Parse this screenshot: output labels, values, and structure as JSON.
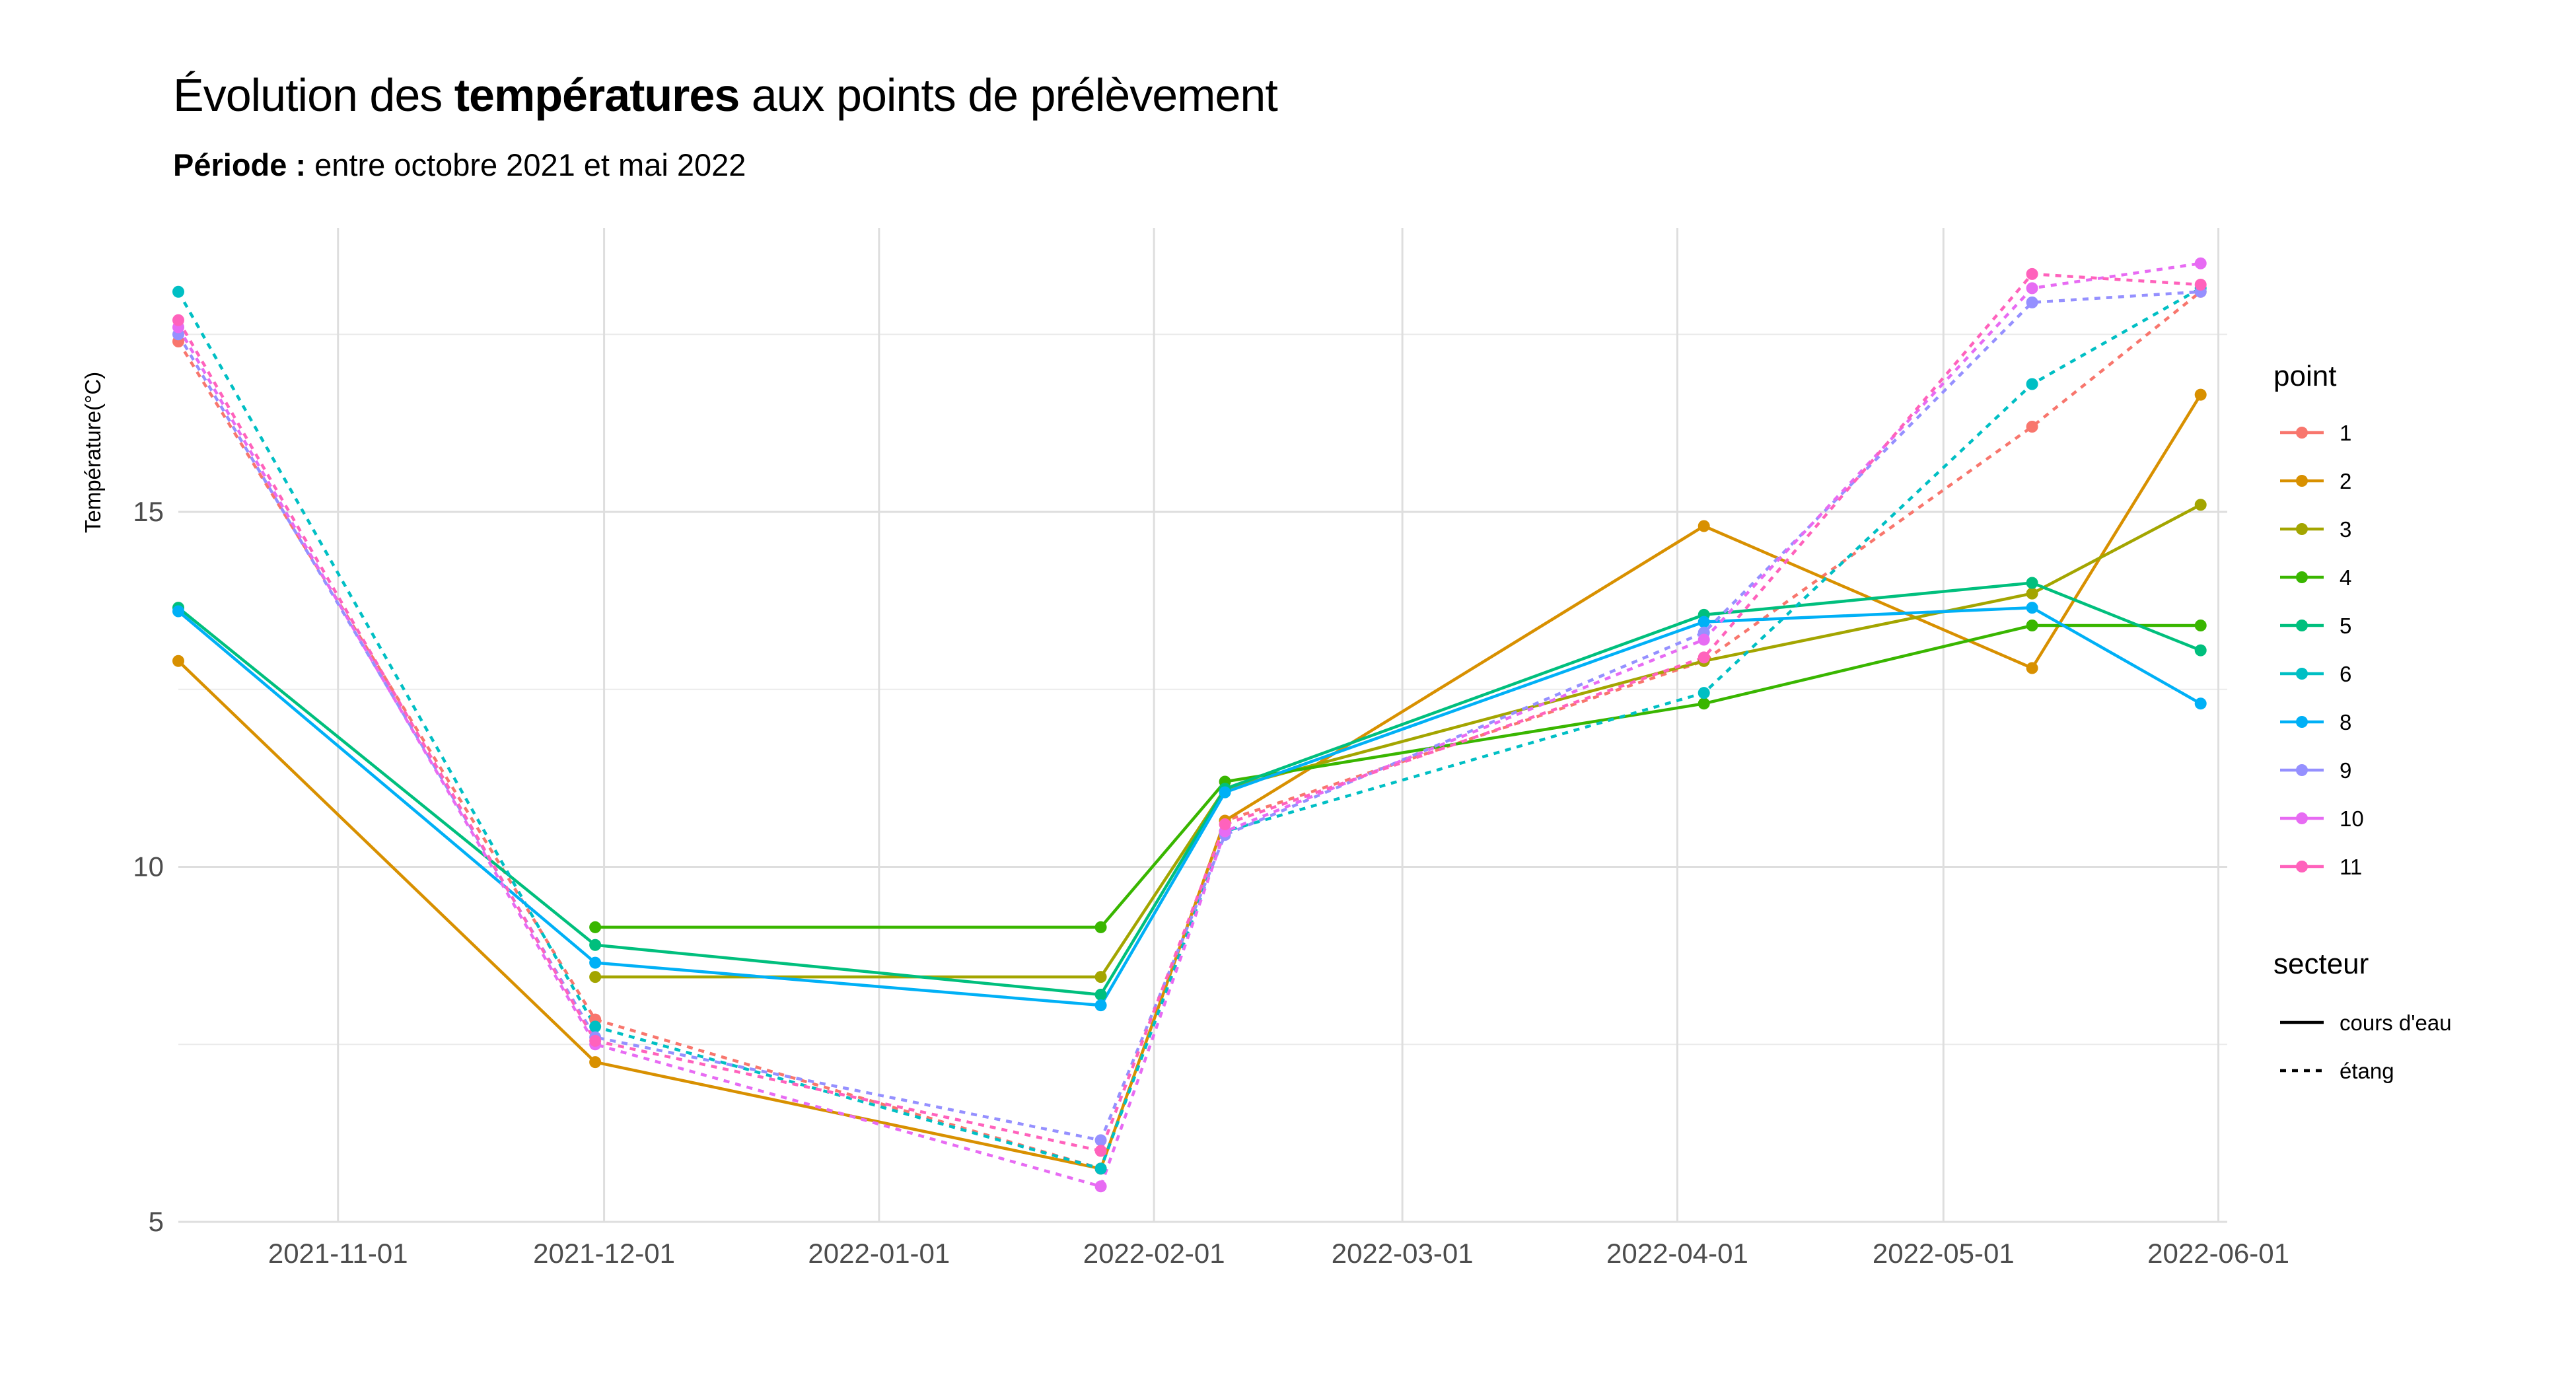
{
  "header": {
    "title_prefix": "Évolution des ",
    "title_bold": "températures",
    "title_suffix": " aux points de prélèvement",
    "subtitle_bold": "Période :",
    "subtitle_rest": " entre octobre 2021 et mai 2022"
  },
  "chart_data": {
    "type": "line",
    "ylabel": "Température(°C)",
    "xlabel": "",
    "ylim": [
      5,
      19
    ],
    "xlim": [
      "2021-10-14",
      "2022-06-02"
    ],
    "y_ticks": [
      5,
      10,
      15
    ],
    "x_ticks": [
      "2021-11-01",
      "2021-12-01",
      "2022-01-01",
      "2022-02-01",
      "2022-03-01",
      "2022-04-01",
      "2022-05-01",
      "2022-06-01"
    ],
    "grid": true,
    "legend_position": "right",
    "legend_point_title": "point",
    "legend_secteur_title": "secteur",
    "secteur_labels": {
      "cours": "cours d'eau",
      "etang": "étang"
    },
    "series": [
      {
        "name": "1",
        "color": "#F8766D",
        "secteur": "étang",
        "x": [
          "2021-10-14",
          "2021-11-30",
          "2022-01-26",
          "2022-02-09",
          "2022-04-04",
          "2022-05-11",
          "2022-05-30"
        ],
        "values": [
          17.4,
          7.85,
          5.75,
          10.65,
          12.9,
          16.2,
          18.1
        ]
      },
      {
        "name": "2",
        "color": "#D89000",
        "secteur": "cours d'eau",
        "x": [
          "2021-10-14",
          "2021-11-30",
          "2022-01-26",
          "2022-02-09",
          "2022-04-04",
          "2022-05-11",
          "2022-05-30"
        ],
        "values": [
          12.9,
          7.25,
          5.75,
          10.65,
          14.8,
          12.8,
          16.65
        ]
      },
      {
        "name": "3",
        "color": "#A3A500",
        "secteur": "cours d'eau",
        "x": [
          "2021-11-30",
          "2022-01-26",
          "2022-02-09",
          "2022-04-04",
          "2022-05-11",
          "2022-05-30"
        ],
        "values": [
          8.45,
          8.45,
          11.1,
          12.9,
          13.85,
          15.1
        ]
      },
      {
        "name": "4",
        "color": "#39B600",
        "secteur": "cours d'eau",
        "x": [
          "2021-11-30",
          "2022-01-26",
          "2022-02-09",
          "2022-04-04",
          "2022-05-11",
          "2022-05-30"
        ],
        "values": [
          9.15,
          9.15,
          11.2,
          12.3,
          13.4,
          13.4
        ]
      },
      {
        "name": "5",
        "color": "#00BF7D",
        "secteur": "cours d'eau",
        "x": [
          "2021-10-14",
          "2021-11-30",
          "2022-01-26",
          "2022-02-09",
          "2022-04-04",
          "2022-05-11",
          "2022-05-30"
        ],
        "values": [
          13.65,
          8.9,
          8.2,
          11.1,
          13.55,
          14.0,
          13.05
        ]
      },
      {
        "name": "6",
        "color": "#00BFC4",
        "secteur": "étang",
        "x": [
          "2021-10-14",
          "2021-11-30",
          "2022-01-26",
          "2022-02-09",
          "2022-04-04",
          "2022-05-11",
          "2022-05-30"
        ],
        "values": [
          18.1,
          7.75,
          5.75,
          10.5,
          12.45,
          16.8,
          18.15
        ]
      },
      {
        "name": "8",
        "color": "#00B0F6",
        "secteur": "cours d'eau",
        "x": [
          "2021-10-14",
          "2021-11-30",
          "2022-01-26",
          "2022-02-09",
          "2022-04-04",
          "2022-05-11",
          "2022-05-30"
        ],
        "values": [
          13.6,
          8.65,
          8.05,
          11.05,
          13.45,
          13.65,
          12.3
        ]
      },
      {
        "name": "9",
        "color": "#9590FF",
        "secteur": "étang",
        "x": [
          "2021-10-14",
          "2021-11-30",
          "2022-01-26",
          "2022-02-09",
          "2022-04-04",
          "2022-05-11",
          "2022-05-30"
        ],
        "values": [
          17.5,
          7.6,
          6.15,
          10.45,
          13.3,
          17.95,
          18.1
        ]
      },
      {
        "name": "10",
        "color": "#E76BF3",
        "secteur": "étang",
        "x": [
          "2021-10-14",
          "2021-11-30",
          "2022-01-26",
          "2022-02-09",
          "2022-04-04",
          "2022-05-11",
          "2022-05-30"
        ],
        "values": [
          17.6,
          7.5,
          5.5,
          10.5,
          13.2,
          18.15,
          18.5
        ]
      },
      {
        "name": "11",
        "color": "#FF62BC",
        "secteur": "étang",
        "x": [
          "2021-10-14",
          "2021-11-30",
          "2022-01-26",
          "2022-02-09",
          "2022-04-04",
          "2022-05-11",
          "2022-05-30"
        ],
        "values": [
          17.7,
          7.55,
          6.0,
          10.6,
          12.95,
          18.35,
          18.2
        ]
      }
    ]
  }
}
